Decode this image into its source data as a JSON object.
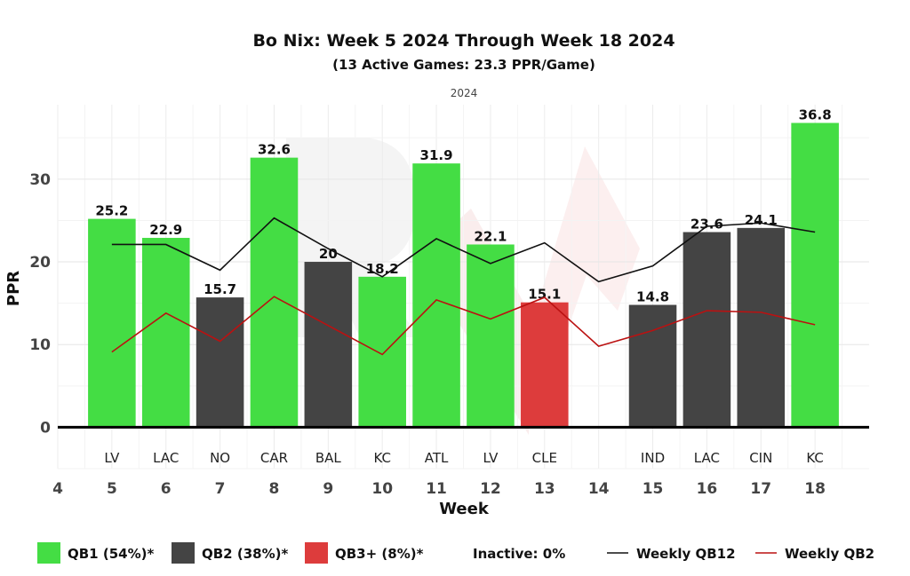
{
  "chart_data": {
    "type": "bar",
    "title": "Bo Nix: Week 5 2024 Through Week 18 2024",
    "subtitle": "(13 Active Games: 23.3 PPR/Game)",
    "facet_label": "2024",
    "xlabel": "Week",
    "ylabel": "PPR",
    "xlim": [
      4,
      19
    ],
    "ylim": [
      -5,
      39
    ],
    "x_ticks": [
      4,
      5,
      6,
      7,
      8,
      9,
      10,
      11,
      12,
      13,
      14,
      15,
      16,
      17,
      18
    ],
    "y_ticks": [
      0,
      10,
      20,
      30
    ],
    "grid": true,
    "legend_position": "bottom",
    "bars": [
      {
        "week": 5,
        "opponent": "LV",
        "value": 25.2,
        "label": "25.2",
        "tier": "QB1"
      },
      {
        "week": 6,
        "opponent": "LAC",
        "value": 22.9,
        "label": "22.9",
        "tier": "QB1"
      },
      {
        "week": 7,
        "opponent": "NO",
        "value": 15.7,
        "label": "15.7",
        "tier": "QB2"
      },
      {
        "week": 8,
        "opponent": "CAR",
        "value": 32.6,
        "label": "32.6",
        "tier": "QB1"
      },
      {
        "week": 9,
        "opponent": "BAL",
        "value": 20,
        "label": "20",
        "tier": "QB2"
      },
      {
        "week": 10,
        "opponent": "KC",
        "value": 18.2,
        "label": "18.2",
        "tier": "QB1"
      },
      {
        "week": 11,
        "opponent": "ATL",
        "value": 31.9,
        "label": "31.9",
        "tier": "QB1"
      },
      {
        "week": 12,
        "opponent": "LV",
        "value": 22.1,
        "label": "22.1",
        "tier": "QB1"
      },
      {
        "week": 13,
        "opponent": "CLE",
        "value": 15.1,
        "label": "15.1",
        "tier": "QB3+"
      },
      {
        "week": 15,
        "opponent": "IND",
        "value": 14.8,
        "label": "14.8",
        "tier": "QB2"
      },
      {
        "week": 16,
        "opponent": "LAC",
        "value": 23.6,
        "label": "23.6",
        "tier": "QB2"
      },
      {
        "week": 17,
        "opponent": "CIN",
        "value": 24.1,
        "label": "24.1",
        "tier": "QB2"
      },
      {
        "week": 18,
        "opponent": "KC",
        "value": 36.8,
        "label": "36.8",
        "tier": "QB1"
      }
    ],
    "series": [
      {
        "name": "Weekly QB12",
        "color": "#111111",
        "x": [
          5,
          6,
          7,
          8,
          9,
          10,
          11,
          12,
          13,
          14,
          15,
          16,
          17,
          18
        ],
        "values": [
          22.1,
          22.1,
          19.0,
          25.3,
          21.6,
          18.2,
          22.8,
          19.8,
          22.3,
          17.6,
          19.5,
          24.3,
          24.7,
          23.6
        ]
      },
      {
        "name": "Weekly QB2",
        "color": "#bb1111",
        "x": [
          5,
          6,
          7,
          8,
          9,
          10,
          11,
          12,
          13,
          14,
          15,
          16,
          17,
          18
        ],
        "values": [
          9.1,
          13.8,
          10.4,
          15.8,
          12.3,
          8.8,
          15.4,
          13.1,
          15.7,
          9.8,
          11.7,
          14.1,
          13.9,
          12.4
        ]
      }
    ],
    "tier_colors": {
      "QB1": "#44dd44",
      "QB2": "#444444",
      "QB3+": "#dd3c3c"
    },
    "legend": [
      {
        "kind": "box",
        "label": "QB1 (54%)*",
        "color": "#44dd44"
      },
      {
        "kind": "box",
        "label": "QB2 (38%)*",
        "color": "#444444"
      },
      {
        "kind": "box",
        "label": "QB3+ (8%)*",
        "color": "#dd3c3c"
      },
      {
        "kind": "text",
        "label": "Inactive: 0%"
      },
      {
        "kind": "line",
        "label": "Weekly QB12",
        "color": "#111111"
      },
      {
        "kind": "line",
        "label": "Weekly QB2",
        "color": "#bb1111"
      }
    ]
  }
}
